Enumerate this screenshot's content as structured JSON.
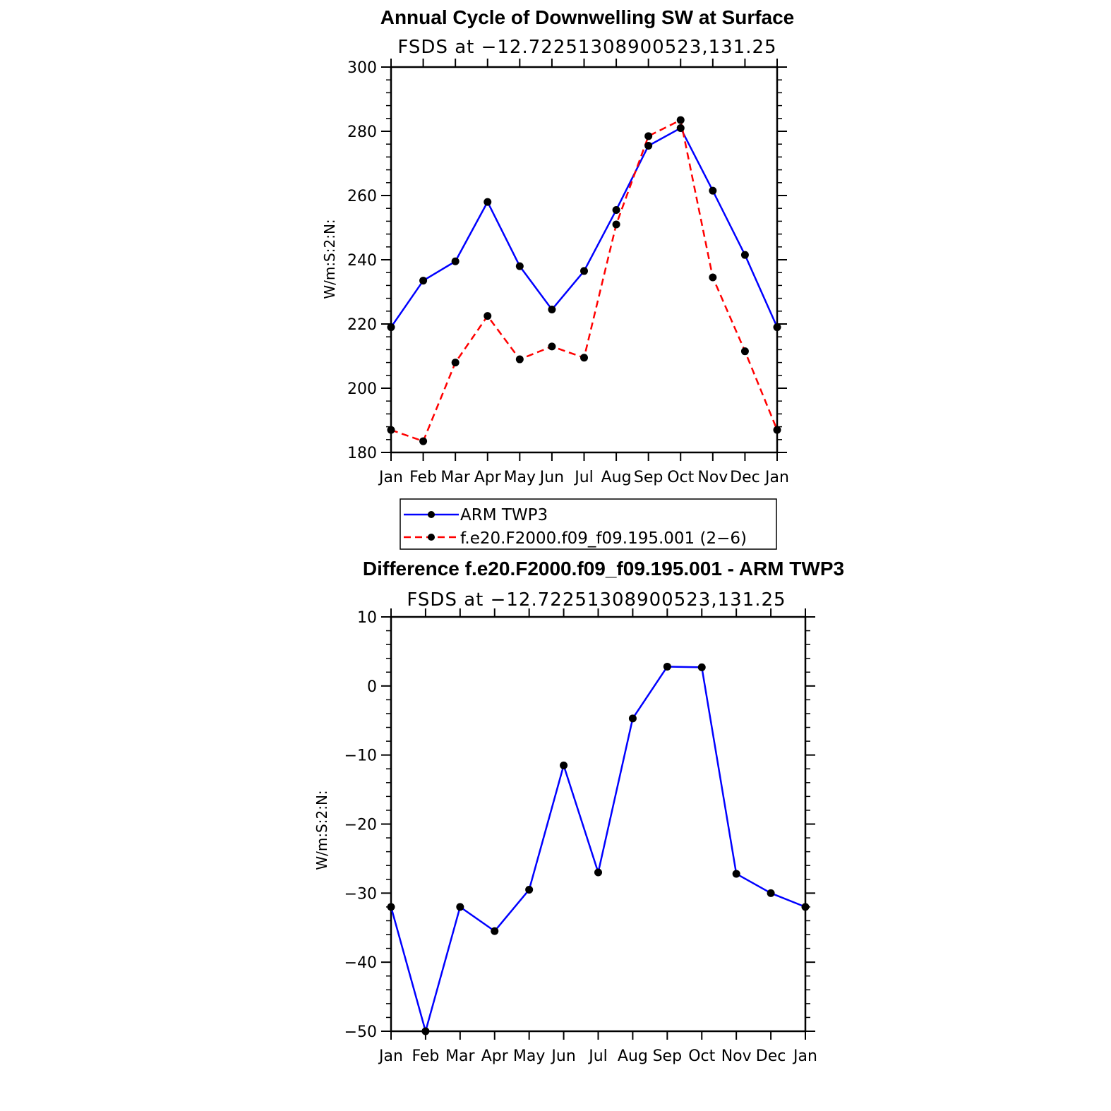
{
  "chart_data": [
    {
      "type": "line",
      "title": "Annual Cycle of Downwelling SW at Surface",
      "subtitle": "FSDS at −12.72251308900523,131.25",
      "ylabel": "W/m:S:2:N:",
      "xlabel": "",
      "categories": [
        "Jan",
        "Feb",
        "Mar",
        "Apr",
        "May",
        "Jun",
        "Jul",
        "Aug",
        "Sep",
        "Oct",
        "Nov",
        "Dec",
        "Jan"
      ],
      "ylim": [
        180,
        300
      ],
      "yticks": [
        "180",
        "200",
        "220",
        "240",
        "260",
        "280",
        "300"
      ],
      "series": [
        {
          "name": "ARM TWP3",
          "color": "#0000ff",
          "dash": "solid",
          "values": [
            219,
            233.5,
            239.5,
            258,
            238,
            224.5,
            236.5,
            255.5,
            275.5,
            281,
            261.5,
            241.5,
            219
          ]
        },
        {
          "name": "f.e20.F2000.f09_f09.195.001 (2−6)",
          "color": "#ff0000",
          "dash": "dashed",
          "values": [
            187,
            183.5,
            208,
            222.5,
            209,
            213,
            209.5,
            251,
            278.5,
            283.5,
            234.5,
            211.5,
            187
          ]
        }
      ],
      "legend": "below"
    },
    {
      "type": "line",
      "title": "Difference f.e20.F2000.f09_f09.195.001 - ARM TWP3",
      "subtitle": "FSDS at −12.72251308900523,131.25",
      "ylabel": "W/m:S:2:N:",
      "xlabel": "",
      "categories": [
        "Jan",
        "Feb",
        "Mar",
        "Apr",
        "May",
        "Jun",
        "Jul",
        "Aug",
        "Sep",
        "Oct",
        "Nov",
        "Dec",
        "Jan"
      ],
      "ylim": [
        -50,
        10
      ],
      "yticks": [
        "−50",
        "−40",
        "−30",
        "−20",
        "−10",
        "0",
        "10"
      ],
      "series": [
        {
          "color": "#0000ff",
          "dash": "solid",
          "values": [
            -32,
            -50,
            -32,
            -35.5,
            -29.5,
            -11.5,
            -27,
            -4.7,
            2.8,
            2.7,
            -27.2,
            -30,
            -32
          ]
        }
      ]
    }
  ]
}
